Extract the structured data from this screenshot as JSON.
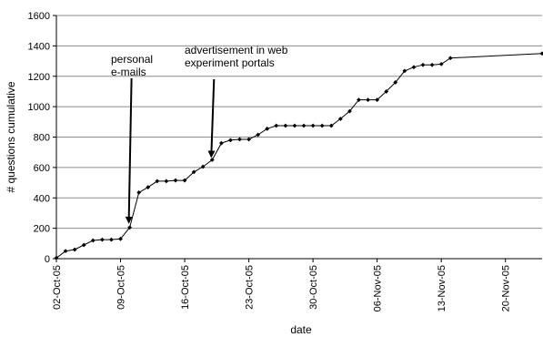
{
  "chart_data": {
    "type": "line",
    "title": "",
    "xlabel": "date",
    "ylabel": "# questions cumulative",
    "ylim": [
      0,
      1600
    ],
    "y_ticks": [
      "0",
      "200",
      "400",
      "600",
      "800",
      "1000",
      "1200",
      "1400",
      "1600"
    ],
    "x_range": [
      "2005-10-02",
      "2005-11-24"
    ],
    "x_ticks": [
      {
        "date": "2005-10-02",
        "label": "02-Oct-05"
      },
      {
        "date": "2005-10-09",
        "label": "09-Oct-05"
      },
      {
        "date": "2005-10-16",
        "label": "16-Oct-05"
      },
      {
        "date": "2005-10-23",
        "label": "23-Oct-05"
      },
      {
        "date": "2005-10-30",
        "label": "30-Oct-05"
      },
      {
        "date": "2005-11-06",
        "label": "06-Nov-05"
      },
      {
        "date": "2005-11-13",
        "label": "13-Nov-05"
      },
      {
        "date": "2005-11-20",
        "label": "20-Nov-05"
      }
    ],
    "grid": "horizontal",
    "legend": "none",
    "line_color": "#000000",
    "series": [
      {
        "x": [
          "2005-10-02",
          "2005-10-03",
          "2005-10-04",
          "2005-10-05",
          "2005-10-06",
          "2005-10-07",
          "2005-10-08",
          "2005-10-09",
          "2005-10-10",
          "2005-10-11",
          "2005-10-12",
          "2005-10-13",
          "2005-10-14",
          "2005-10-15",
          "2005-10-16",
          "2005-10-17",
          "2005-10-18",
          "2005-10-19",
          "2005-10-20",
          "2005-10-21",
          "2005-10-22",
          "2005-10-23",
          "2005-10-24",
          "2005-10-25",
          "2005-10-26",
          "2005-10-27",
          "2005-10-28",
          "2005-10-29",
          "2005-10-30",
          "2005-10-31",
          "2005-11-01",
          "2005-11-02",
          "2005-11-03",
          "2005-11-04",
          "2005-11-05",
          "2005-11-06",
          "2005-11-07",
          "2005-11-08",
          "2005-11-09",
          "2005-11-10",
          "2005-11-11",
          "2005-11-12",
          "2005-11-13",
          "2005-11-14",
          "2005-11-24"
        ],
        "y": [
          5,
          50,
          60,
          90,
          120,
          125,
          125,
          130,
          205,
          435,
          470,
          510,
          510,
          515,
          515,
          570,
          605,
          650,
          760,
          780,
          785,
          785,
          815,
          855,
          875,
          875,
          875,
          875,
          875,
          875,
          875,
          920,
          970,
          1045,
          1045,
          1045,
          1100,
          1160,
          1235,
          1260,
          1275,
          1275,
          1280,
          1320,
          1350
        ]
      }
    ],
    "annotations": [
      {
        "lines": [
          "personal",
          "e-mails"
        ],
        "arrow_date": "2005-10-10",
        "arrow_value": 205
      },
      {
        "lines": [
          "advertisement in web",
          "experiment portals"
        ],
        "arrow_date": "2005-10-19",
        "arrow_value": 650
      }
    ]
  }
}
